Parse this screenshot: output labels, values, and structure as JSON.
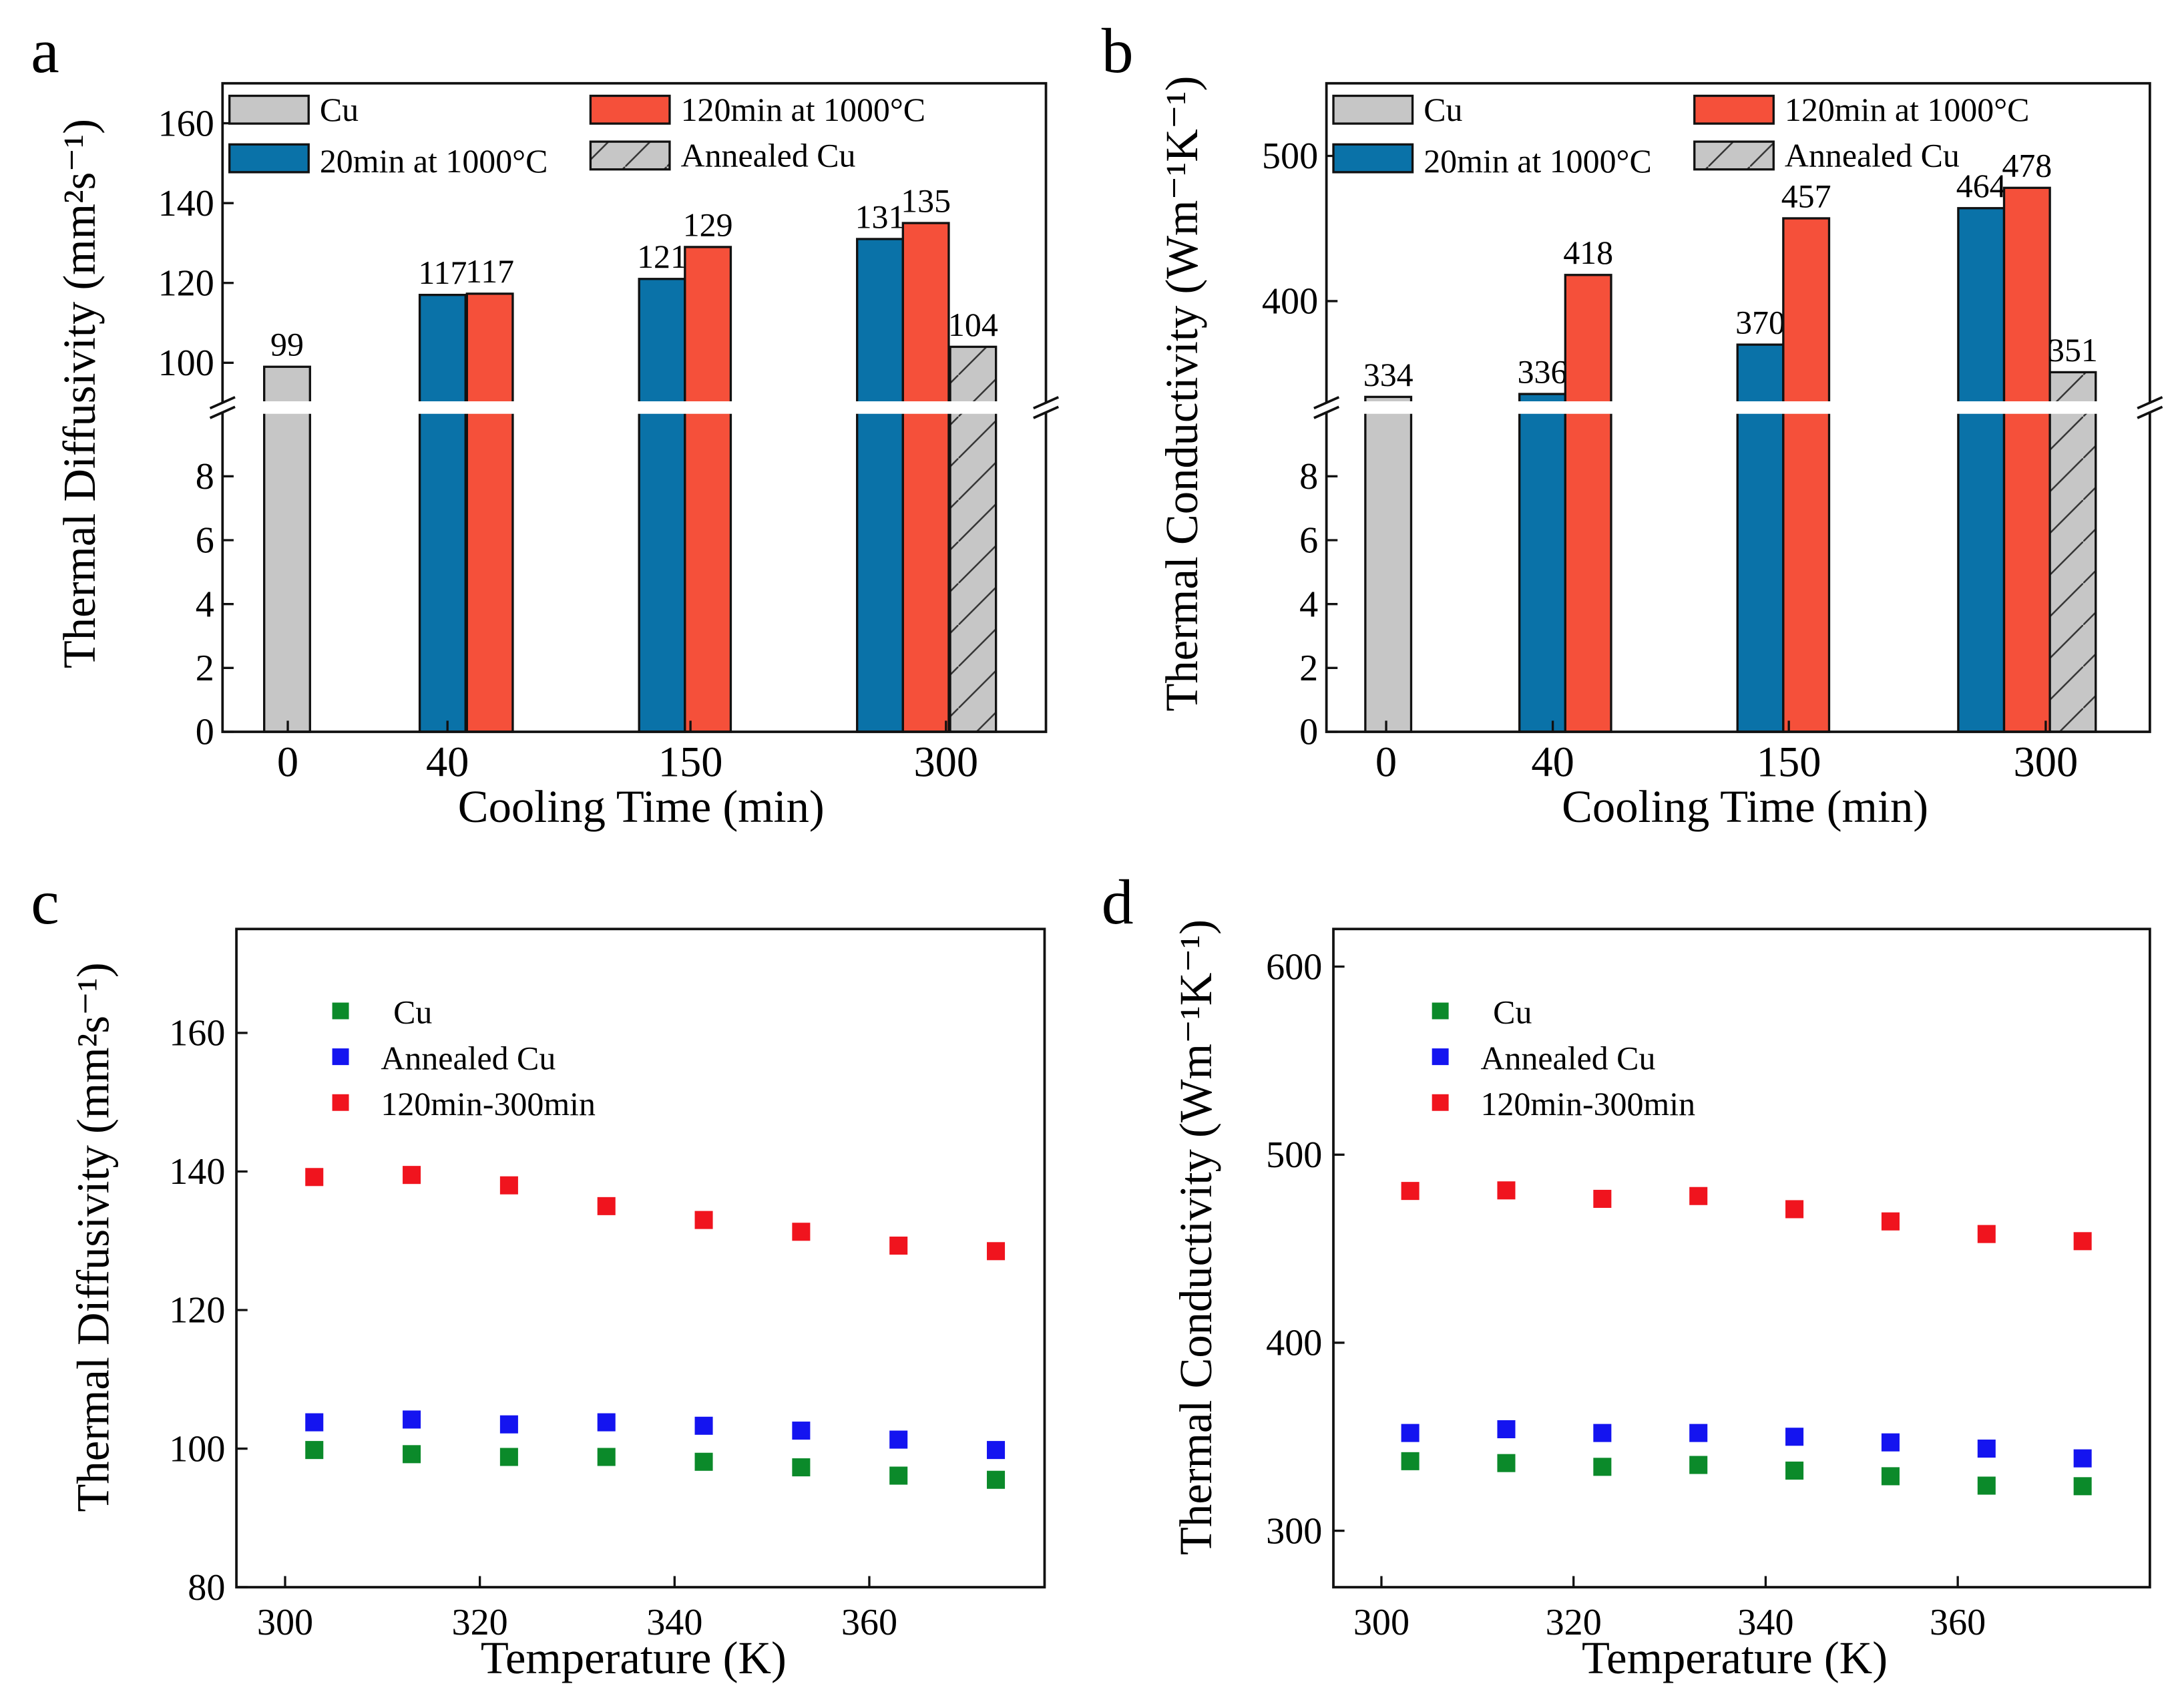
{
  "colors": {
    "cu_gray": "#c6c6c6",
    "blue_20min": "#0a72a8",
    "red_120min": "#f5503a",
    "scatter_green": "#0b8a2a",
    "scatter_blue": "#1414f0",
    "scatter_red": "#f0141e",
    "annealed_gray": "#c6c6c6"
  },
  "chart_data": [
    {
      "panel": "a",
      "type": "bar",
      "xlabel": "Cooling Time (min)",
      "ylabel": "Thermal Diffusivity (mm²s⁻¹)",
      "categories": [
        "0",
        "40",
        "150",
        "300"
      ],
      "broken_axis": true,
      "ylim_lower": [
        0,
        10
      ],
      "ylim_upper": [
        90,
        170
      ],
      "yticks_lower": [
        0,
        2,
        4,
        6,
        8
      ],
      "yticks_upper": [
        100,
        120,
        140,
        160
      ],
      "legend": "top, two columns",
      "series": [
        {
          "name": "Cu",
          "color": "#c6c6c6",
          "hatch": false,
          "values": [
            99,
            null,
            null,
            null
          ],
          "labels": [
            "99",
            null,
            null,
            null
          ]
        },
        {
          "name": "20min at 1000°C",
          "color": "#0a72a8",
          "hatch": false,
          "values": [
            null,
            117,
            121,
            131
          ],
          "labels": [
            null,
            "117",
            "121",
            "131"
          ]
        },
        {
          "name": "120min at 1000°C",
          "color": "#f5503a",
          "hatch": false,
          "values": [
            null,
            117.3,
            129,
            135
          ],
          "labels": [
            null,
            "117",
            "129",
            "135"
          ]
        },
        {
          "name": "Annealed Cu",
          "color": "#c6c6c6",
          "hatch": true,
          "values": [
            null,
            null,
            null,
            104
          ],
          "labels": [
            null,
            null,
            null,
            "104"
          ]
        }
      ]
    },
    {
      "panel": "b",
      "type": "bar",
      "xlabel": "Cooling Time (min)",
      "ylabel": "Thermal Conductivity (Wm⁻¹K⁻¹)",
      "categories": [
        "0",
        "40",
        "150",
        "300"
      ],
      "broken_axis": true,
      "ylim_lower": [
        0,
        10
      ],
      "ylim_upper": [
        330,
        550
      ],
      "yticks_lower": [
        0,
        2,
        4,
        6,
        8
      ],
      "yticks_upper": [
        400,
        500
      ],
      "legend": "top, two columns",
      "series": [
        {
          "name": "Cu",
          "color": "#c6c6c6",
          "hatch": false,
          "values": [
            334,
            null,
            null,
            null
          ],
          "labels": [
            "334",
            null,
            null,
            null
          ]
        },
        {
          "name": "20min at 1000°C",
          "color": "#0a72a8",
          "hatch": false,
          "values": [
            null,
            336,
            370,
            464
          ],
          "labels": [
            null,
            "336",
            "370",
            "464"
          ]
        },
        {
          "name": "120min at 1000°C",
          "color": "#f5503a",
          "hatch": false,
          "values": [
            null,
            418,
            457,
            478
          ],
          "labels": [
            null,
            "418",
            "457",
            "478"
          ]
        },
        {
          "name": "Annealed Cu",
          "color": "#c6c6c6",
          "hatch": true,
          "values": [
            null,
            null,
            null,
            351
          ],
          "labels": [
            null,
            null,
            null,
            "351"
          ]
        }
      ]
    },
    {
      "panel": "c",
      "type": "scatter",
      "xlabel": "Temperature (K)",
      "ylabel": "Thermal Diffusivity (mm²s⁻¹)",
      "xlim": [
        295,
        378
      ],
      "ylim": [
        80,
        175
      ],
      "xticks": [
        300,
        320,
        340,
        360
      ],
      "yticks": [
        80,
        100,
        120,
        140,
        160
      ],
      "legend": "upper-left",
      "x": [
        303,
        313,
        323,
        333,
        343,
        353,
        363,
        373
      ],
      "series": [
        {
          "name": "Cu",
          "color": "#0b8a2a",
          "values": [
            99.8,
            99.2,
            98.8,
            98.8,
            98.1,
            97.3,
            96.1,
            95.5
          ]
        },
        {
          "name": "Annealed Cu",
          "color": "#1414f0",
          "values": [
            103.8,
            104.2,
            103.5,
            103.8,
            103.3,
            102.6,
            101.3,
            99.8
          ]
        },
        {
          "name": "120min-300min",
          "color": "#f0141e",
          "values": [
            139.2,
            139.5,
            138.0,
            135.0,
            133.0,
            131.3,
            129.3,
            128.5
          ]
        }
      ]
    },
    {
      "panel": "d",
      "type": "scatter",
      "xlabel": "Temperature (K)",
      "ylabel": "Thermal Conductivity (Wm⁻¹K⁻¹)",
      "xlim": [
        295,
        380
      ],
      "ylim": [
        270,
        620
      ],
      "xticks": [
        300,
        320,
        340,
        360
      ],
      "yticks": [
        300,
        400,
        500,
        600
      ],
      "legend": "upper-left",
      "x": [
        303,
        313,
        323,
        333,
        343,
        353,
        363,
        373
      ],
      "series": [
        {
          "name": "Cu",
          "color": "#0b8a2a",
          "values": [
            337,
            336,
            334,
            335,
            332,
            329,
            324,
            323.7
          ]
        },
        {
          "name": "Annealed Cu",
          "color": "#1414f0",
          "values": [
            352,
            354,
            352,
            352,
            350,
            347,
            343.7,
            338.5
          ]
        },
        {
          "name": "120min-300min",
          "color": "#f0141e",
          "values": [
            480.7,
            481,
            476.5,
            478,
            471,
            464.5,
            457.8,
            454
          ]
        }
      ]
    }
  ]
}
